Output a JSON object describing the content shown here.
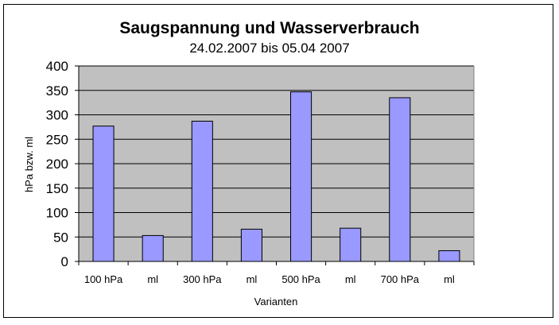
{
  "chart_data": {
    "type": "bar",
    "title": "Saugspannung und Wasserverbrauch",
    "subtitle": "24.02.2007 bis 05.04 2007",
    "xlabel": "Varianten",
    "ylabel": "hPa bzw. ml",
    "categories": [
      "100 hPa",
      "ml",
      "300 hPa",
      "ml",
      "500 hPa",
      "ml",
      "700 hPa",
      "ml"
    ],
    "values": [
      277,
      53,
      287,
      66,
      347,
      68,
      335,
      22
    ],
    "ylim": [
      0,
      400
    ],
    "yticks": [
      "0",
      "50",
      "100",
      "150",
      "200",
      "250",
      "300",
      "350",
      "400"
    ],
    "grid": true,
    "legend": "none",
    "colors": {
      "plot_background": "#C0C0C0",
      "bar_fill": "#9999FF",
      "bar_stroke": "#000000",
      "gridline": "#000000"
    }
  }
}
